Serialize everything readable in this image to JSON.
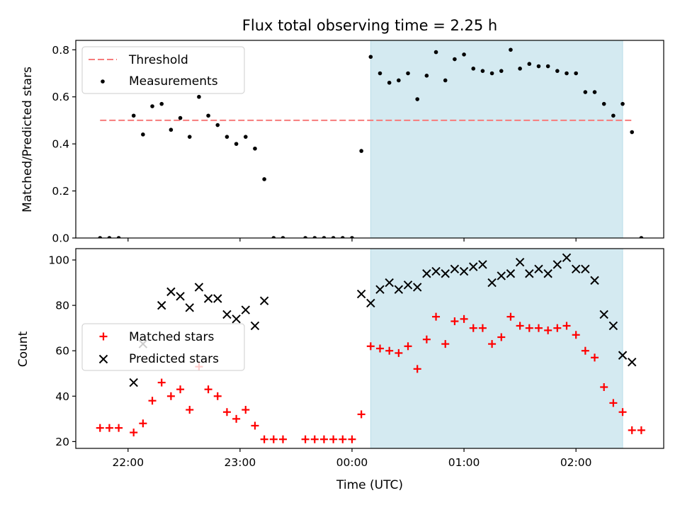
{
  "chart_data": [
    {
      "type": "scatter",
      "title": "Flux total observing time = 2.25 h",
      "ylabel": "Matched/Predicted stars",
      "xlabel": "",
      "xlim": [
        "21:32",
        "02:47"
      ],
      "ylim": [
        0,
        0.84
      ],
      "yticks": [
        0,
        0.2,
        0.4,
        0.6,
        0.8
      ],
      "ytick_labels": [
        "0.0",
        "0.2",
        "0.4",
        "0.6",
        "0.8"
      ],
      "grid": false,
      "legend_position": "top-left",
      "highlight_span": {
        "start": "00:10",
        "end": "02:25",
        "color": "#d4eaf1"
      },
      "threshold": {
        "name": "Threshold",
        "value": 0.5,
        "x_start": "21:45",
        "x_end": "02:30",
        "color": "#f77c7c",
        "style": "dashed"
      },
      "series": [
        {
          "name": "Measurements",
          "marker": "dot",
          "color": "#000000",
          "x": [
            "21:45",
            "21:50",
            "21:55",
            "22:03",
            "22:08",
            "22:13",
            "22:18",
            "22:23",
            "22:28",
            "22:33",
            "22:38",
            "22:43",
            "22:48",
            "22:53",
            "22:58",
            "23:03",
            "23:08",
            "23:13",
            "23:18",
            "23:23",
            "23:35",
            "23:40",
            "23:45",
            "23:50",
            "23:55",
            "00:00",
            "00:05",
            "00:10",
            "00:15",
            "00:20",
            "00:25",
            "00:30",
            "00:35",
            "00:40",
            "00:45",
            "00:50",
            "00:55",
            "01:00",
            "01:05",
            "01:10",
            "01:15",
            "01:20",
            "01:25",
            "01:30",
            "01:35",
            "01:40",
            "01:45",
            "01:50",
            "01:55",
            "02:00",
            "02:05",
            "02:10",
            "02:15",
            "02:20",
            "02:25",
            "02:30",
            "02:35"
          ],
          "y": [
            0,
            0,
            0,
            0.52,
            0.44,
            0.56,
            0.57,
            0.46,
            0.51,
            0.43,
            0.6,
            0.52,
            0.48,
            0.43,
            0.4,
            0.43,
            0.38,
            0.25,
            0,
            0,
            0,
            0,
            0,
            0,
            0,
            0,
            0.37,
            0.77,
            0.7,
            0.66,
            0.67,
            0.7,
            0.59,
            0.69,
            0.79,
            0.67,
            0.76,
            0.78,
            0.72,
            0.71,
            0.7,
            0.71,
            0.8,
            0.72,
            0.74,
            0.73,
            0.73,
            0.71,
            0.7,
            0.7,
            0.62,
            0.62,
            0.57,
            0.52,
            0.57,
            0.45,
            0
          ]
        }
      ]
    },
    {
      "type": "scatter",
      "title": "",
      "ylabel": "Count",
      "xlabel": "Time (UTC)",
      "xlim": [
        "21:32",
        "02:47"
      ],
      "ylim": [
        17,
        105
      ],
      "yticks": [
        20,
        40,
        60,
        80,
        100
      ],
      "ytick_labels": [
        "20",
        "40",
        "60",
        "80",
        "100"
      ],
      "xticks": [
        "22:00",
        "23:00",
        "00:00",
        "01:00",
        "02:00"
      ],
      "xtick_labels": [
        "22:00",
        "23:00",
        "00:00",
        "01:00",
        "02:00"
      ],
      "grid": false,
      "legend_position": "center-left",
      "highlight_span": {
        "start": "00:10",
        "end": "02:25",
        "color": "#d4eaf1"
      },
      "series": [
        {
          "name": "Matched stars",
          "marker": "plus",
          "color": "#ff0000",
          "x": [
            "21:45",
            "21:50",
            "21:55",
            "22:03",
            "22:08",
            "22:13",
            "22:18",
            "22:23",
            "22:28",
            "22:33",
            "22:38",
            "22:43",
            "22:48",
            "22:53",
            "22:58",
            "23:03",
            "23:08",
            "23:13",
            "23:18",
            "23:23",
            "23:35",
            "23:40",
            "23:45",
            "23:50",
            "23:55",
            "00:00",
            "00:05",
            "00:10",
            "00:15",
            "00:20",
            "00:25",
            "00:30",
            "00:35",
            "00:40",
            "00:45",
            "00:50",
            "00:55",
            "01:00",
            "01:05",
            "01:10",
            "01:15",
            "01:20",
            "01:25",
            "01:30",
            "01:35",
            "01:40",
            "01:45",
            "01:50",
            "01:55",
            "02:00",
            "02:05",
            "02:10",
            "02:15",
            "02:20",
            "02:25",
            "02:30",
            "02:35"
          ],
          "y": [
            26,
            26,
            26,
            24,
            28,
            38,
            46,
            40,
            43,
            34,
            53,
            43,
            40,
            33,
            30,
            34,
            27,
            21,
            21,
            21,
            21,
            21,
            21,
            21,
            21,
            21,
            32,
            62,
            61,
            60,
            59,
            62,
            52,
            65,
            75,
            63,
            73,
            74,
            70,
            70,
            63,
            66,
            75,
            71,
            70,
            70,
            69,
            70,
            71,
            67,
            60,
            57,
            44,
            37,
            33,
            25,
            25
          ]
        },
        {
          "name": "Predicted stars",
          "marker": "x",
          "color": "#000000",
          "x": [
            "22:03",
            "22:08",
            "22:18",
            "22:23",
            "22:28",
            "22:33",
            "22:38",
            "22:43",
            "22:48",
            "22:53",
            "22:58",
            "23:03",
            "23:08",
            "23:13",
            "00:05",
            "00:10",
            "00:15",
            "00:20",
            "00:25",
            "00:30",
            "00:35",
            "00:40",
            "00:45",
            "00:50",
            "00:55",
            "01:00",
            "01:05",
            "01:10",
            "01:15",
            "01:20",
            "01:25",
            "01:30",
            "01:35",
            "01:40",
            "01:45",
            "01:50",
            "01:55",
            "02:00",
            "02:05",
            "02:10",
            "02:15",
            "02:20",
            "02:25",
            "02:30"
          ],
          "y": [
            46,
            63,
            80,
            86,
            84,
            79,
            88,
            83,
            83,
            76,
            74,
            78,
            71,
            82,
            85,
            81,
            87,
            90,
            87,
            89,
            88,
            94,
            95,
            94,
            96,
            95,
            97,
            98,
            90,
            93,
            94,
            99,
            94,
            96,
            94,
            98,
            101,
            96,
            96,
            91,
            76,
            71,
            58,
            55
          ]
        }
      ]
    }
  ]
}
